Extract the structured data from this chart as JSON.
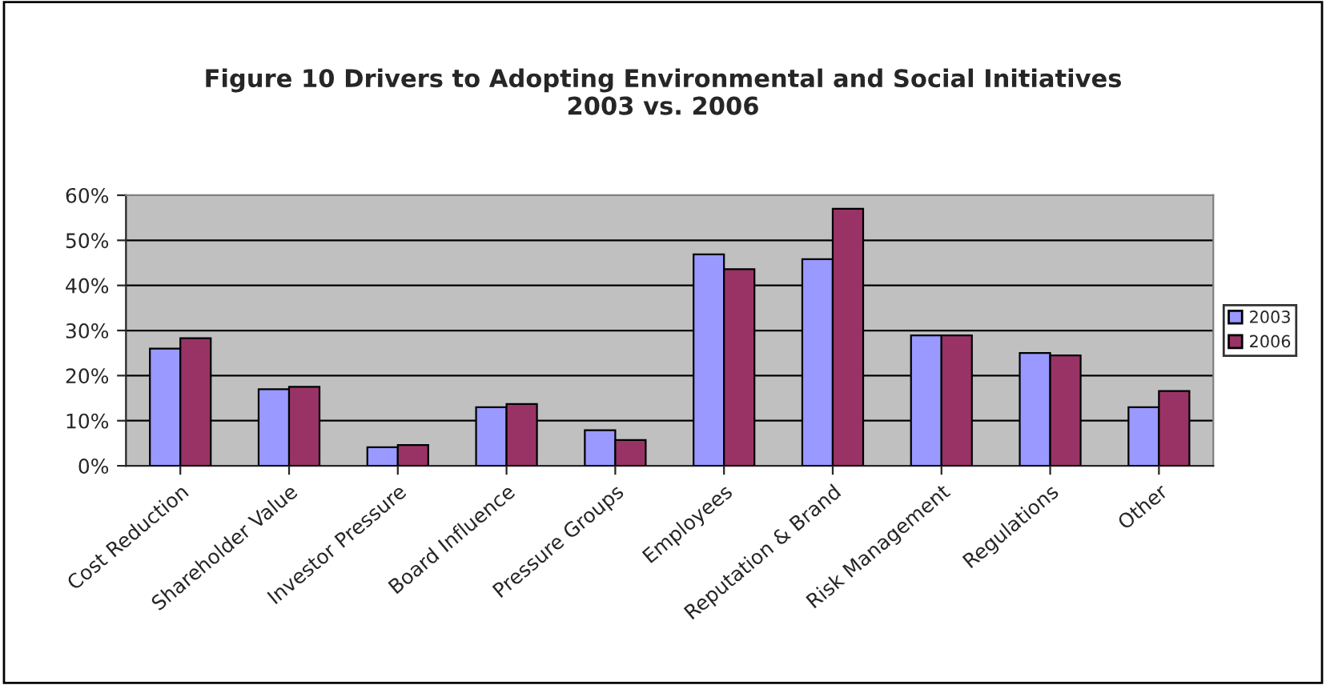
{
  "chart_data": {
    "type": "bar",
    "title": "Figure 10 Drivers to Adopting Environmental and Social Initiatives\n2003 vs. 2006",
    "categories": [
      "Cost Reduction",
      "Shareholder Value",
      "Investor Pressure",
      "Board Influence",
      "Pressure Groups",
      "Employees",
      "Reputation & Brand",
      "Risk Management",
      "Regulations",
      "Other"
    ],
    "series": [
      {
        "name": "2003",
        "color": "#9999ff",
        "values": [
          26,
          17,
          4.1,
          13,
          7.9,
          46.9,
          45.8,
          28.9,
          25,
          13
        ]
      },
      {
        "name": "2006",
        "color": "#993366",
        "values": [
          28.3,
          17.5,
          4.6,
          13.7,
          5.7,
          43.6,
          57,
          28.9,
          24.5,
          16.6
        ]
      }
    ],
    "ylim": [
      0,
      60
    ],
    "yticks": [
      {
        "value": 0,
        "label": "0%"
      },
      {
        "value": 10,
        "label": "10%"
      },
      {
        "value": 20,
        "label": "20%"
      },
      {
        "value": 30,
        "label": "30%"
      },
      {
        "value": 40,
        "label": "40%"
      },
      {
        "value": 50,
        "label": "50%"
      },
      {
        "value": 60,
        "label": "60%"
      }
    ],
    "grid": "y",
    "legend": "right"
  }
}
